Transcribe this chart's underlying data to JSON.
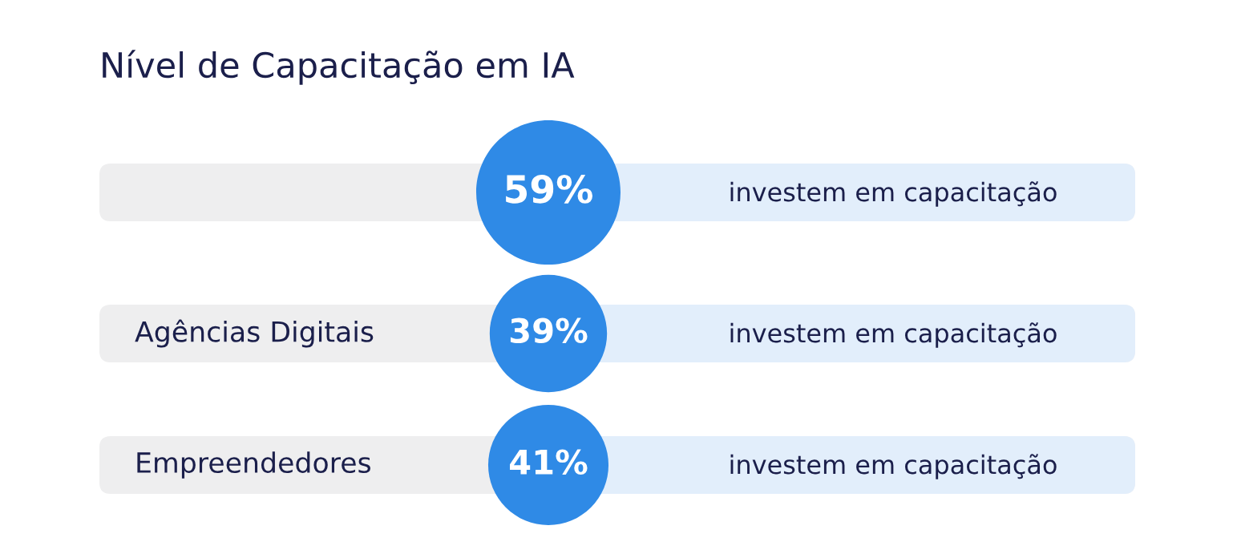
{
  "chart_data": {
    "type": "other",
    "title": "Nível de Capacitação em IA",
    "categories": [
      null,
      "Agências Digitais",
      "Empreendedores"
    ],
    "values": [
      59,
      39,
      41
    ],
    "value_labels": [
      "59%",
      "39%",
      "41%"
    ],
    "colors": [
      "#2f8ae6",
      "#2f8ae6",
      "#2f8ae6"
    ],
    "annotations": [
      "investem em capacitação",
      "investem em capacitação",
      "investem em capacitação"
    ]
  }
}
